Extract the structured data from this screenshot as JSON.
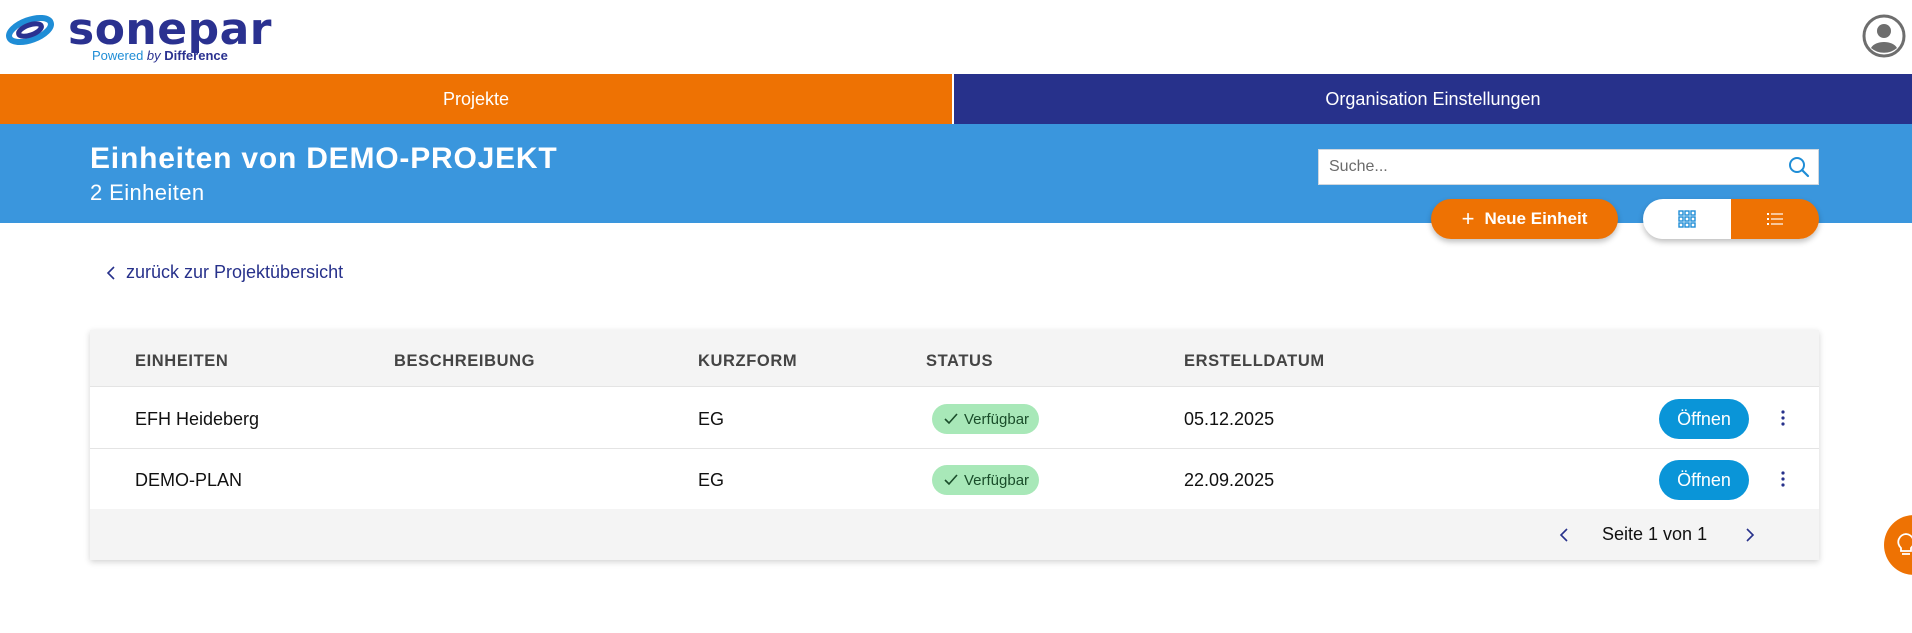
{
  "header": {
    "logo_word": "sonepar",
    "logo_tag_powered": "Powered ",
    "logo_tag_by": "by",
    "logo_tag_difference": " Difference"
  },
  "nav": {
    "tabs": [
      {
        "label": "Projekte",
        "active": true
      },
      {
        "label": "Organisation Einstellungen",
        "active": false
      }
    ]
  },
  "band": {
    "title": "Einheiten von DEMO-PROJEKT",
    "subtitle": "2 Einheiten",
    "search_placeholder": "Suche..."
  },
  "actions": {
    "new_label": "Neue Einheit",
    "view_mode": "list"
  },
  "back_link": "zurück zur Projektübersicht",
  "table": {
    "columns": [
      "EINHEITEN",
      "BESCHREIBUNG",
      "KURZFORM",
      "STATUS",
      "ERSTELLDATUM"
    ],
    "rows": [
      {
        "name": "EFH Heideberg",
        "description": "",
        "short": "EG",
        "status": "Verfügbar",
        "date": "05.12.2025",
        "action": "Öffnen"
      },
      {
        "name": "DEMO-PLAN",
        "description": "",
        "short": "EG",
        "status": "Verfügbar",
        "date": "22.09.2025",
        "action": "Öffnen"
      }
    ],
    "pagination": "Seite 1 von 1"
  },
  "colors": {
    "orange": "#ee7203",
    "navy": "#27318b",
    "band_blue": "#3a96dd",
    "button_blue": "#0a95d8",
    "status_green": "#a8e8b8"
  },
  "icons": [
    "logo-swirl-icon",
    "user-avatar-icon",
    "search-icon",
    "plus-icon",
    "grid-view-icon",
    "list-view-icon",
    "chevron-left-icon",
    "check-icon",
    "more-vert-icon",
    "chevron-right-icon",
    "lightbulb-icon"
  ]
}
